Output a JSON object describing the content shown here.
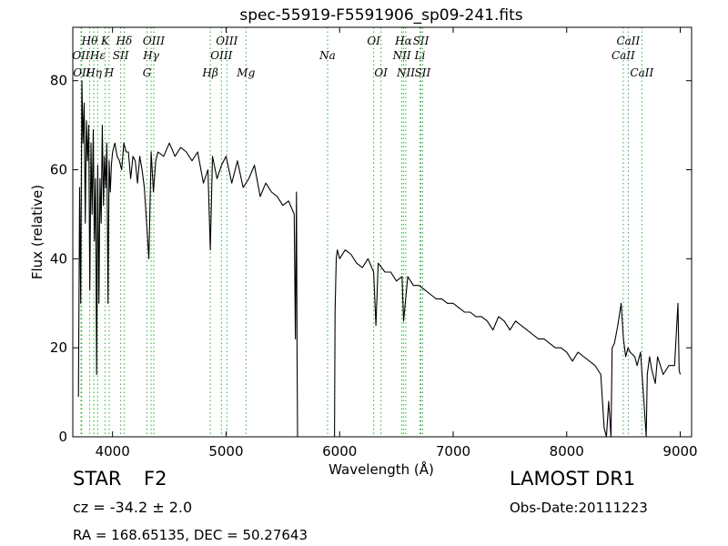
{
  "chart_data": {
    "type": "line",
    "title": "spec-55919-F5591906_sp09-241.fits",
    "xlabel": "Wavelength (Å)",
    "ylabel": "Flux (relative)",
    "xlim": [
      3650,
      9100
    ],
    "ylim": [
      0,
      92
    ],
    "xticks": [
      4000,
      5000,
      6000,
      7000,
      8000,
      9000
    ],
    "yticks": [
      0,
      20,
      40,
      60,
      80
    ],
    "grid": false,
    "line_color": "#000000",
    "marker_line_color": "#33aa33",
    "series": [
      {
        "x": [
          3700,
          3710,
          3720,
          3730,
          3740,
          3750,
          3760,
          3770,
          3780,
          3790,
          3800,
          3810,
          3820,
          3830,
          3840,
          3850,
          3860,
          3870,
          3880,
          3890,
          3900,
          3910,
          3920,
          3930,
          3940,
          3950,
          3960,
          3970,
          3980,
          3990,
          4000,
          4020,
          4040,
          4060,
          4080,
          4100,
          4120,
          4140,
          4160,
          4180,
          4200,
          4220,
          4240,
          4260,
          4280,
          4300,
          4320,
          4340,
          4360,
          4380,
          4400,
          4450,
          4500,
          4550,
          4600,
          4650,
          4700,
          4750,
          4800,
          4840,
          4861,
          4880,
          4920,
          4960,
          5000,
          5050,
          5100,
          5150,
          5200,
          5250,
          5300,
          5350,
          5400,
          5450,
          5500,
          5550,
          5600,
          5610,
          5620,
          5625,
          5630,
          5640,
          5700,
          5800,
          5900,
          5950,
          5955,
          5960,
          5970,
          5980,
          6000,
          6050,
          6100,
          6150,
          6200,
          6250,
          6300,
          6320,
          6340,
          6400,
          6450,
          6500,
          6550,
          6563,
          6600,
          6650,
          6700,
          6750,
          6800,
          6850,
          6900,
          6950,
          7000,
          7050,
          7100,
          7150,
          7200,
          7250,
          7300,
          7350,
          7400,
          7450,
          7500,
          7550,
          7600,
          7650,
          7700,
          7750,
          7800,
          7850,
          7900,
          7950,
          8000,
          8050,
          8100,
          8150,
          8200,
          8250,
          8300,
          8330,
          8350,
          8370,
          8390,
          8400,
          8420,
          8450,
          8480,
          8500,
          8520,
          8540,
          8560,
          8600,
          8620,
          8650,
          8680,
          8700,
          8710,
          8730,
          8750,
          8780,
          8800,
          8850,
          8900,
          8950,
          8980,
          8990,
          9000
        ],
        "y": [
          9,
          56,
          30,
          80,
          66,
          75,
          48,
          71,
          62,
          70,
          33,
          66,
          50,
          69,
          44,
          58,
          14,
          61,
          30,
          58,
          48,
          70,
          52,
          63,
          56,
          66,
          30,
          62,
          55,
          61,
          64,
          66,
          63,
          62,
          60,
          66,
          64,
          64,
          58,
          63,
          62,
          57,
          63,
          60,
          56,
          48,
          40,
          64,
          55,
          62,
          64,
          63,
          66,
          63,
          65,
          64,
          62,
          64,
          57,
          60,
          42,
          63,
          58,
          61,
          63,
          57,
          62,
          56,
          58,
          61,
          54,
          57,
          55,
          54,
          52,
          53,
          50,
          22,
          55,
          20,
          0,
          0,
          0,
          0,
          0,
          0,
          0,
          28,
          40,
          42,
          40,
          42,
          41,
          39,
          38,
          40,
          37,
          25,
          39,
          37,
          37,
          35,
          36,
          26,
          36,
          34,
          34,
          33,
          32,
          31,
          31,
          30,
          30,
          29,
          28,
          28,
          27,
          27,
          26,
          24,
          27,
          26,
          24,
          26,
          25,
          24,
          23,
          22,
          22,
          21,
          20,
          20,
          19,
          17,
          19,
          18,
          17,
          16,
          14,
          2,
          0,
          8,
          0,
          20,
          21,
          25,
          30,
          22,
          18,
          20,
          19,
          18,
          16,
          19,
          8,
          0,
          14,
          18,
          15,
          12,
          18,
          14,
          16,
          16,
          30,
          15,
          14
        ]
      }
    ],
    "markers": [
      {
        "wl": 3722,
        "label": "OII",
        "row": 2
      },
      {
        "wl": 3729,
        "label": "OII",
        "row": 3
      },
      {
        "wl": 3798,
        "label": "Hθ",
        "row": 1
      },
      {
        "wl": 3835,
        "label": "Hη",
        "row": 3
      },
      {
        "wl": 3869,
        "label": "Hε",
        "row": 2
      },
      {
        "wl": 3934,
        "label": "K",
        "row": 1
      },
      {
        "wl": 3970,
        "label": "H",
        "row": 3
      },
      {
        "wl": 4072,
        "label": "SII",
        "row": 2
      },
      {
        "wl": 4102,
        "label": "Hδ",
        "row": 1
      },
      {
        "wl": 4304,
        "label": "G",
        "row": 3
      },
      {
        "wl": 4340,
        "label": "Hγ",
        "row": 2
      },
      {
        "wl": 4363,
        "label": "OIII",
        "row": 1
      },
      {
        "wl": 4861,
        "label": "Hβ",
        "row": 3
      },
      {
        "wl": 4959,
        "label": "OIII",
        "row": 2
      },
      {
        "wl": 5007,
        "label": "OIII",
        "row": 1
      },
      {
        "wl": 5175,
        "label": "Mg",
        "row": 3
      },
      {
        "wl": 5894,
        "label": "Na",
        "row": 2
      },
      {
        "wl": 6300,
        "label": "OI",
        "row": 1
      },
      {
        "wl": 6364,
        "label": "OI",
        "row": 3
      },
      {
        "wl": 6548,
        "label": "NII",
        "row": 2
      },
      {
        "wl": 6563,
        "label": "Hα",
        "row": 1
      },
      {
        "wl": 6583,
        "label": "NII",
        "row": 3
      },
      {
        "wl": 6707,
        "label": "Li",
        "row": 2
      },
      {
        "wl": 6716,
        "label": "SII",
        "row": 1
      },
      {
        "wl": 6731,
        "label": "SII",
        "row": 3
      },
      {
        "wl": 8498,
        "label": "CaII",
        "row": 2
      },
      {
        "wl": 8542,
        "label": "CaII",
        "row": 1
      },
      {
        "wl": 8662,
        "label": "CaII",
        "row": 3
      }
    ]
  },
  "info": {
    "class": "STAR",
    "subclass": "F2",
    "survey": "LAMOST DR1",
    "cz": "cz = -34.2 ± 2.0",
    "obs_date": "Obs-Date:20111223",
    "coords": "RA = 168.65135, DEC = 50.27643"
  }
}
